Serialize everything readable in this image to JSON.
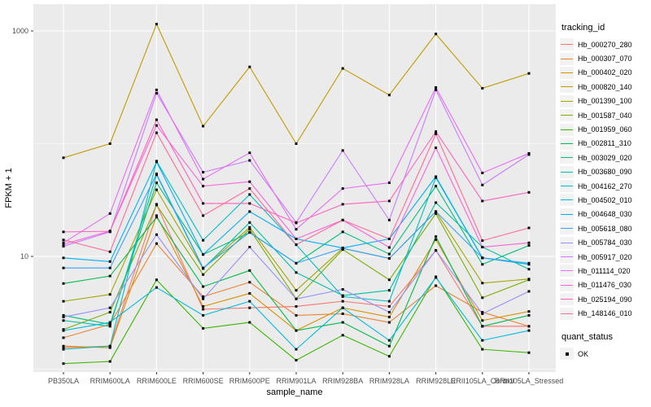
{
  "chart_data": {
    "type": "line",
    "title": "",
    "xlabel": "sample_name",
    "ylabel": "FPKM + 1",
    "y_scale": "log10",
    "ylim": [
      0.95,
      1700
    ],
    "y_major_ticks": [
      {
        "value": 10,
        "label": "10"
      },
      {
        "value": 1000,
        "label": "1000"
      }
    ],
    "y_minor_ticks": [
      1,
      100
    ],
    "grid": "white major/minor gridlines on grey panel",
    "legend_position": "right",
    "point_marker": "black-square",
    "categories": [
      "PB350LA",
      "RRIM600LA",
      "RRIM600LE",
      "RRIM600SE",
      "RRIM600PE",
      "RRIM901LA",
      "RRIM928BA",
      "RRIM928LA",
      "RRIM928LE",
      "RRII105LA_Control",
      "RRII105LA_Stressed"
    ],
    "series": [
      {
        "name": "Hb_000270_280",
        "color": "#F8766D",
        "values": [
          1.55,
          1.6,
          29,
          3.4,
          3.5,
          3.6,
          4.0,
          3.6,
          11.3,
          2.4,
          2.4
        ]
      },
      {
        "name": "Hb_000307_070",
        "color": "#EA8331",
        "values": [
          1.9,
          2.5,
          13,
          4.4,
          5.9,
          3.0,
          3.1,
          2.6,
          5.5,
          3.2,
          2.4
        ]
      },
      {
        "name": "Hb_000402_020",
        "color": "#D89000",
        "values": [
          1.6,
          1.55,
          23,
          3.6,
          4.7,
          2.2,
          3.5,
          2.9,
          14.1,
          2.7,
          3.25
        ]
      },
      {
        "name": "Hb_000820_140",
        "color": "#C09B00",
        "values": [
          75,
          100,
          1150,
          143,
          480,
          100,
          465,
          270,
          940,
          310,
          420
        ]
      },
      {
        "name": "Hb_001390_100",
        "color": "#A3A500",
        "values": [
          4.0,
          4.6,
          39,
          7.8,
          18.1,
          5.0,
          11.8,
          9.6,
          25,
          5.8,
          6.3
        ]
      },
      {
        "name": "Hb_001587_040",
        "color": "#7CAE00",
        "values": [
          2.25,
          3.2,
          28.6,
          6.9,
          17.4,
          4.2,
          11.5,
          6.2,
          24,
          4.3,
          6.2
        ]
      },
      {
        "name": "Hb_001959_060",
        "color": "#39B600",
        "values": [
          1.12,
          1.17,
          6.2,
          2.3,
          2.6,
          1.2,
          2.0,
          1.3,
          6.6,
          1.5,
          1.4
        ]
      },
      {
        "name": "Hb_002811_310",
        "color": "#00BB4E",
        "values": [
          5.75,
          6.7,
          22.3,
          5.4,
          7.5,
          2.2,
          2.6,
          1.6,
          15,
          2.4,
          3.0
        ]
      },
      {
        "name": "Hb_003029_020",
        "color": "#00BF7D",
        "values": [
          3.0,
          2.5,
          45,
          10.4,
          16.3,
          8.7,
          16.5,
          10.5,
          42,
          8.5,
          12.5
        ]
      },
      {
        "name": "Hb_003680_090",
        "color": "#00C1A3",
        "values": [
          2.7,
          2.4,
          53,
          7.8,
          20,
          7.2,
          4.5,
          5.0,
          30,
          12.1,
          7.7
        ]
      },
      {
        "name": "Hb_004162_270",
        "color": "#00BFC4",
        "values": [
          1.5,
          1.6,
          70,
          13.9,
          35.4,
          12.7,
          4.4,
          4.0,
          50,
          9.7,
          8.5
        ]
      },
      {
        "name": "Hb_004502_010",
        "color": "#00BAE0",
        "values": [
          2.2,
          2.6,
          5.3,
          3.0,
          4.0,
          1.5,
          3.5,
          1.8,
          6.5,
          1.8,
          2.2
        ]
      },
      {
        "name": "Hb_004648_030",
        "color": "#00B0F6",
        "values": [
          9.7,
          9.0,
          69,
          10.4,
          25,
          14.3,
          11.9,
          14.3,
          51,
          9.7,
          8.7
        ]
      },
      {
        "name": "Hb_005618_080",
        "color": "#35A2FF",
        "values": [
          7.9,
          7.9,
          54,
          7.9,
          16.3,
          8.7,
          11.8,
          9.6,
          25,
          9.7,
          8.7
        ]
      },
      {
        "name": "Hb_005784_030",
        "color": "#9590FF",
        "values": [
          2.9,
          3.5,
          15.6,
          4.2,
          12.1,
          4.2,
          5.1,
          3.2,
          11.3,
          3.1,
          4.9
        ]
      },
      {
        "name": "Hb_005917_020",
        "color": "#C77CFF",
        "values": [
          12.3,
          16.5,
          280,
          55.8,
          71,
          20,
          87,
          21,
          300,
          43,
          80
        ]
      },
      {
        "name": "Hb_011114_020",
        "color": "#E76BF3",
        "values": [
          13.2,
          24,
          300,
          48.5,
          83,
          17.4,
          40,
          45,
          315,
          55,
          82
        ]
      },
      {
        "name": "Hb_011476_030",
        "color": "#FA62DB",
        "values": [
          12.8,
          16.8,
          145,
          42,
          46,
          14.3,
          21,
          12,
          92,
          12.1,
          13.2
        ]
      },
      {
        "name": "Hb_025194_090",
        "color": "#FF62BC",
        "values": [
          16.5,
          16.7,
          163,
          29.5,
          29.5,
          19.8,
          29,
          31,
          128,
          31,
          37
        ]
      },
      {
        "name": "Hb_148146_010",
        "color": "#FF6A98",
        "values": [
          14.0,
          11,
          125,
          23,
          40,
          12.7,
          21,
          14.3,
          122,
          13.8,
          17.9
        ]
      }
    ]
  },
  "legend": {
    "color_title": "tracking_id",
    "shape_title": "quant_status",
    "shape_items": [
      {
        "label": "OK"
      }
    ]
  },
  "colors": {
    "panel_bg": "#EBEBEB",
    "gridline": "#FFFFFF",
    "axis_text": "#4D4D4D",
    "axis_title": "#000000",
    "tick_mark": "#333333",
    "point": "#000000",
    "legend_key_bg": "#F2F2F2"
  }
}
